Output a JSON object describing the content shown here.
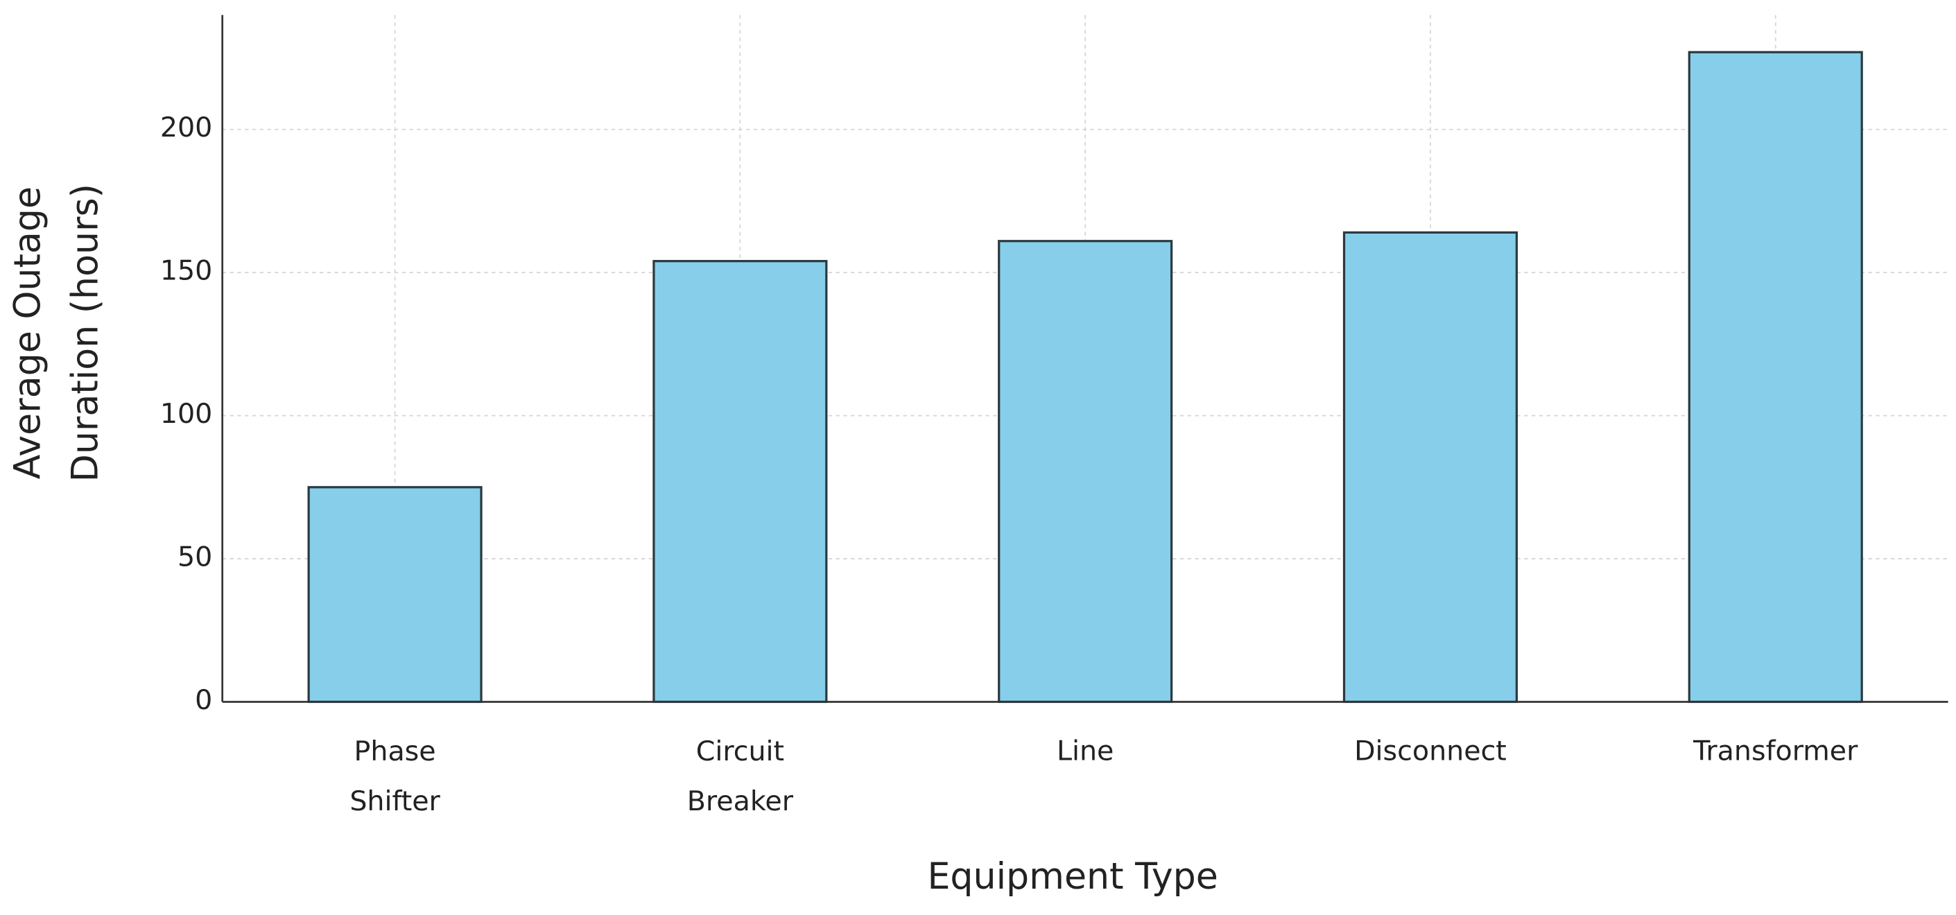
{
  "chart_data": {
    "type": "bar",
    "x_label": "Equipment Type",
    "y_label": [
      "Average Outage",
      "Duration (hours)"
    ],
    "categories": [
      "Phase Shifter",
      "Circuit Breaker",
      "Line",
      "Disconnect",
      "Transformer"
    ],
    "values": [
      75,
      154,
      161,
      164,
      227
    ],
    "color": "#87ceeb",
    "edge_color": "#2b3a40",
    "ylim": [
      0,
      240
    ],
    "yticks": [
      0,
      50,
      100,
      150,
      200
    ],
    "grid": true
  }
}
